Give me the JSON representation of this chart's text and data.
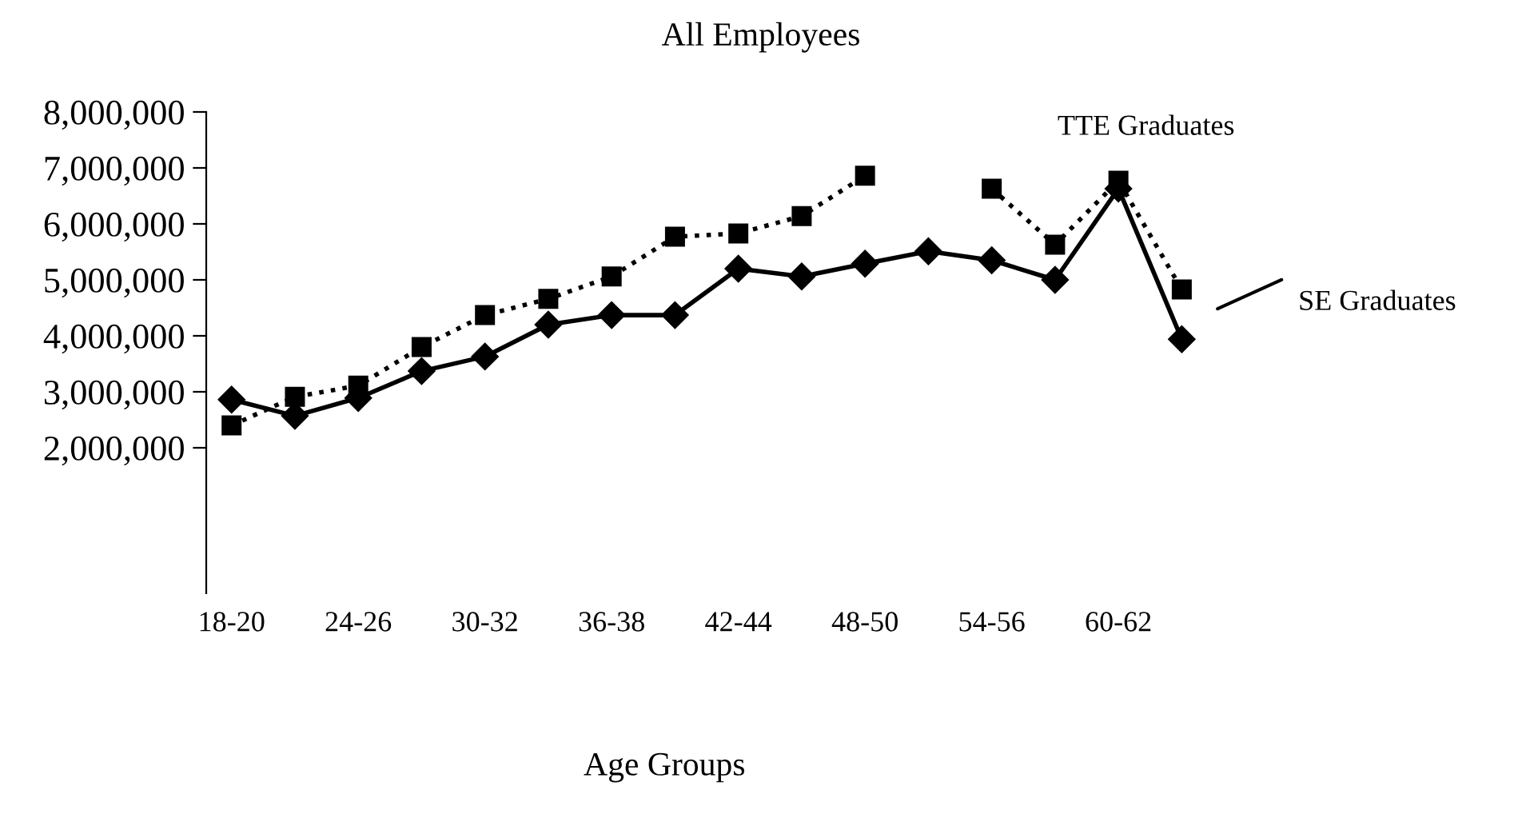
{
  "chart_data": {
    "type": "line",
    "title": "All Employees",
    "xlabel": "Age Groups",
    "categories": [
      "18-20",
      null,
      "24-26",
      null,
      "30-32",
      null,
      "36-38",
      null,
      "42-44",
      null,
      "48-50",
      null,
      "54-56",
      null,
      "60-62",
      null
    ],
    "series": [
      {
        "name": "TTE Graduates",
        "color": "#000000",
        "marker": "square",
        "line_style": "dotted",
        "values": [
          2400000,
          2910000,
          3110000,
          3800000,
          4370000,
          4660000,
          5060000,
          5770000,
          5830000,
          6140000,
          6860000,
          null,
          6630000,
          5630000,
          6770000,
          4830000
        ]
      },
      {
        "name": "SE Graduates",
        "color": "#000000",
        "marker": "diamond",
        "line_style": "solid",
        "values": [
          2860000,
          2570000,
          2890000,
          3370000,
          3630000,
          4200000,
          4370000,
          4370000,
          5200000,
          5060000,
          5290000,
          5510000,
          5350000,
          5000000,
          6630000,
          3940000
        ]
      }
    ],
    "ylim": [
      -600000,
      8000000
    ],
    "yticks": [
      {
        "value": 2000000,
        "label": "2,000,000"
      },
      {
        "value": 3000000,
        "label": "3,000,000"
      },
      {
        "value": 4000000,
        "label": "4,000,000"
      },
      {
        "value": 5000000,
        "label": "5,000,000"
      },
      {
        "value": 6000000,
        "label": "6,000,000"
      },
      {
        "value": 7000000,
        "label": "7,000,000"
      },
      {
        "value": 8000000,
        "label": "8,000,000"
      }
    ],
    "grid": false
  }
}
